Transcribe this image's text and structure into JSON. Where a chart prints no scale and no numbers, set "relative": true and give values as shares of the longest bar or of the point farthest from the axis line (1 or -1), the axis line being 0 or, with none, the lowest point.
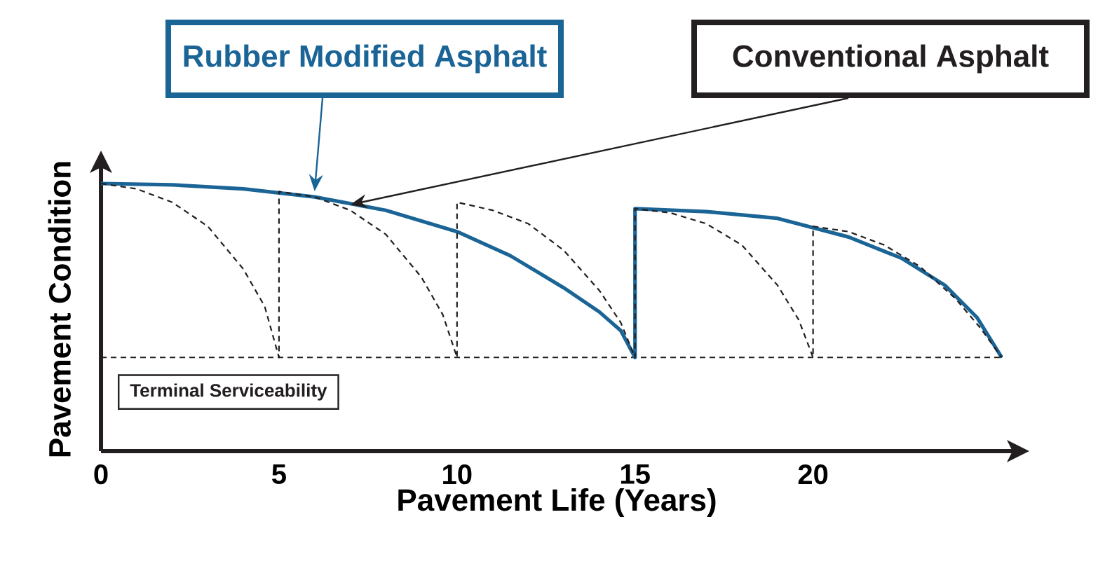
{
  "chart_data": {
    "type": "line",
    "relative": true,
    "xlabel": "Pavement Life (Years)",
    "ylabel": "Pavement Condition",
    "xlim": [
      0,
      25.6
    ],
    "xticks": [
      0,
      5,
      10,
      15,
      20
    ],
    "series": [
      {
        "name": "Rubber Modified Asphalt",
        "color": "#1a6496",
        "line_style": "solid",
        "x": [
          0,
          2,
          4,
          6,
          8,
          10,
          11.5,
          13,
          14,
          14.6,
          15,
          15,
          17,
          19,
          21,
          22.5,
          23.7,
          24.6,
          25.3
        ],
        "values": [
          1,
          0.995,
          0.98,
          0.95,
          0.9,
          0.82,
          0.73,
          0.61,
          0.52,
          0.45,
          0.35,
          0.906,
          0.895,
          0.87,
          0.8,
          0.72,
          0.62,
          0.5,
          0.35
        ]
      },
      {
        "name": "Conventional Asphalt",
        "color": "#231f20",
        "line_style": "dashed",
        "x": [
          0,
          1,
          2,
          3,
          4,
          4.6,
          5,
          5,
          6,
          7,
          8,
          9,
          9.6,
          10,
          10,
          11,
          12,
          13,
          14,
          14.6,
          15,
          15,
          16,
          17,
          18,
          19,
          19.6,
          20,
          20,
          21,
          22,
          23,
          24,
          24.7,
          25.3
        ],
        "values": [
          1,
          0.98,
          0.93,
          0.84,
          0.68,
          0.54,
          0.35,
          0.97,
          0.95,
          0.9,
          0.81,
          0.65,
          0.51,
          0.35,
          0.93,
          0.9,
          0.85,
          0.75,
          0.6,
          0.48,
          0.35,
          0.906,
          0.89,
          0.85,
          0.77,
          0.62,
          0.49,
          0.35,
          0.84,
          0.82,
          0.77,
          0.69,
          0.57,
          0.46,
          0.35
        ]
      }
    ],
    "ref_lines": [
      {
        "axis": "y",
        "value": 0.35,
        "label": "Terminal Serviceability",
        "color": "#231f20",
        "line_style": "dashed"
      }
    ]
  }
}
